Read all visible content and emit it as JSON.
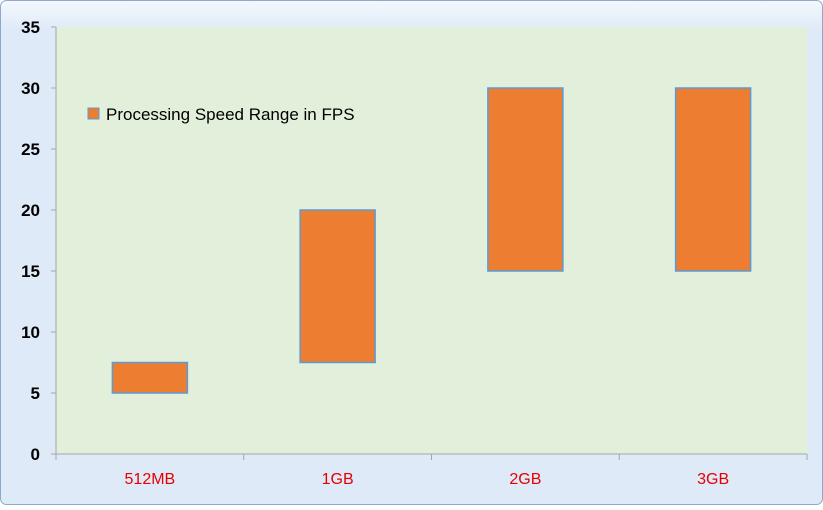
{
  "chart_data": {
    "type": "bar",
    "subtype": "floating-range",
    "categories": [
      "512MB",
      "1GB",
      "2GB",
      "3GB"
    ],
    "series": [
      {
        "name": "Processing Speed Range in FPS",
        "ranges": [
          [
            5,
            7.5
          ],
          [
            7.5,
            20
          ],
          [
            15,
            30
          ],
          [
            15,
            30
          ]
        ]
      }
    ],
    "ylim": [
      0,
      35
    ],
    "yticks": [
      0,
      5,
      10,
      15,
      20,
      25,
      30,
      35
    ],
    "title": "",
    "xlabel": "",
    "ylabel": "",
    "legend_position": "top-left",
    "grid": false,
    "colors": {
      "bar_fill": "#ED7D31",
      "bar_stroke": "#5B9BD5",
      "plot_background": "#E2EFDA",
      "chart_background": "#DEEAF8",
      "category_label": "#E60000",
      "axis": "#A6A6A6"
    }
  }
}
